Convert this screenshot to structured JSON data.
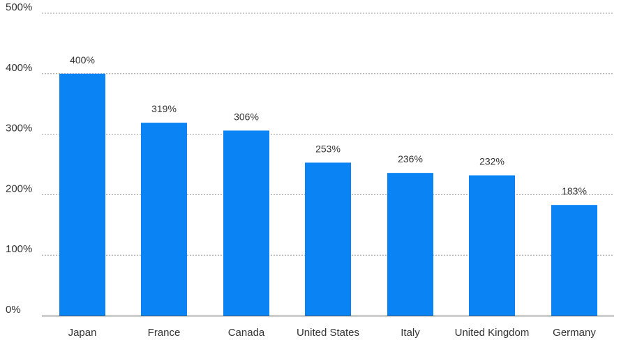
{
  "chart_data": {
    "type": "bar",
    "title": "",
    "xlabel": "",
    "ylabel": "",
    "categories": [
      "Japan",
      "France",
      "Canada",
      "United States",
      "Italy",
      "United Kingdom",
      "Germany"
    ],
    "values": [
      400,
      319,
      306,
      253,
      236,
      232,
      183
    ],
    "data_labels": [
      "400%",
      "319%",
      "306%",
      "253%",
      "236%",
      "232%",
      "183%"
    ],
    "ylim": [
      0,
      500
    ],
    "yticks": [
      0,
      100,
      200,
      300,
      400,
      500
    ],
    "ytick_labels": [
      "0%",
      "100%",
      "200%",
      "300%",
      "400%",
      "500%"
    ],
    "grid": "horizontal dotted",
    "legend": "none",
    "colors": {
      "bar": "#0A84F5",
      "grid": "#9a9a9a",
      "axis": "#444444",
      "text": "#333333"
    }
  }
}
